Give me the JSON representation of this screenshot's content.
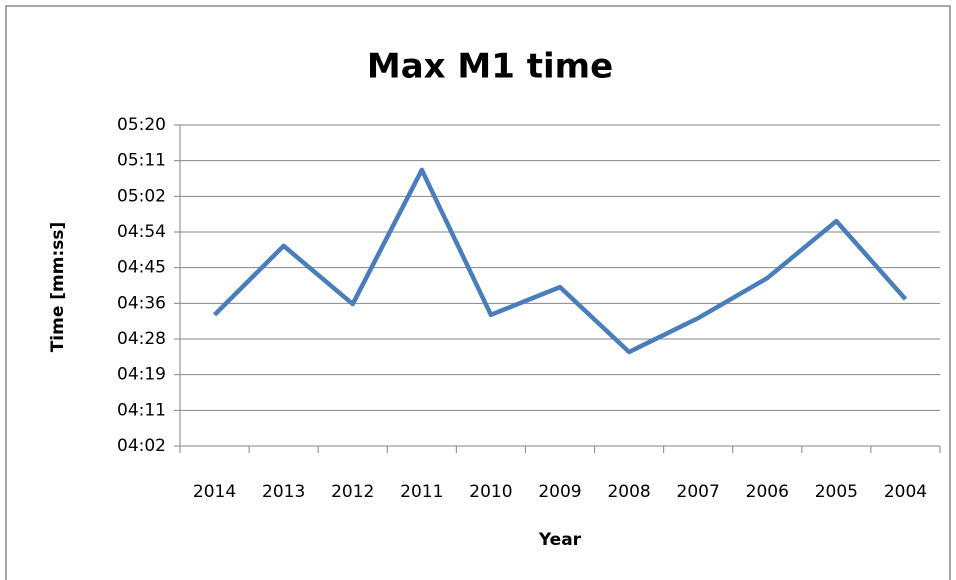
{
  "chart_data": {
    "type": "line",
    "title": "Max M1 time",
    "x_label": "Year",
    "y_label": "Time [mm:ss]",
    "categories": [
      "2014",
      "2013",
      "2012",
      "2011",
      "2010",
      "2009",
      "2008",
      "2007",
      "2006",
      "2005",
      "2004"
    ],
    "series": [
      {
        "name": "Max M1 time",
        "color": "#4a7ebb",
        "values": [
          273.7,
          290.4,
          276.3,
          308.8,
          273.7,
          280.4,
          264.7,
          272.9,
          282.6,
          296.4,
          277.5
        ]
      }
    ],
    "ylim": [
      241.92,
      319.68
    ],
    "yticks": [
      {
        "value": 241.92,
        "label": "04:02"
      },
      {
        "value": 250.56,
        "label": "04:11"
      },
      {
        "value": 259.2,
        "label": "04:19"
      },
      {
        "value": 267.84,
        "label": "04:28"
      },
      {
        "value": 276.48,
        "label": "04:36"
      },
      {
        "value": 285.12,
        "label": "04:45"
      },
      {
        "value": 293.76,
        "label": "04:54"
      },
      {
        "value": 302.4,
        "label": "05:02"
      },
      {
        "value": 311.04,
        "label": "05:11"
      },
      {
        "value": 319.68,
        "label": "05:20"
      }
    ],
    "grid": true
  }
}
